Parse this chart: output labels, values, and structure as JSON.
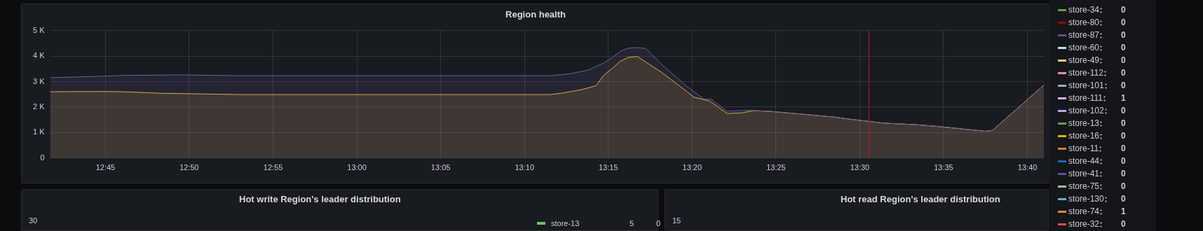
{
  "chart_data": [
    {
      "type": "area",
      "title": "Region health",
      "xlim": [
        12.695,
        13.683
      ],
      "ylim": [
        0,
        5000
      ],
      "xticks": [
        {
          "value": 12.75,
          "label": "12:45"
        },
        {
          "value": 12.8333,
          "label": "12:50"
        },
        {
          "value": 12.9167,
          "label": "12:55"
        },
        {
          "value": 13.0,
          "label": "13:00"
        },
        {
          "value": 13.0833,
          "label": "13:05"
        },
        {
          "value": 13.1667,
          "label": "13:10"
        },
        {
          "value": 13.25,
          "label": "13:15"
        },
        {
          "value": 13.3333,
          "label": "13:20"
        },
        {
          "value": 13.4167,
          "label": "13:25"
        },
        {
          "value": 13.5,
          "label": "13:30"
        },
        {
          "value": 13.5833,
          "label": "13:35"
        },
        {
          "value": 13.6667,
          "label": "13:40"
        }
      ],
      "yticks": [
        {
          "value": 0,
          "label": "0"
        },
        {
          "value": 1000,
          "label": "1 K"
        },
        {
          "value": 2000,
          "label": "2 K"
        },
        {
          "value": 3000,
          "label": "3 K"
        },
        {
          "value": 4000,
          "label": "4 K"
        },
        {
          "value": 5000,
          "label": "5 K"
        }
      ],
      "grid": true,
      "marker": "none",
      "line_style": "solid",
      "ref_lines": [
        {
          "axis": "x",
          "value": 13.509,
          "color": "#c4162a"
        }
      ],
      "series": [
        {
          "color": "#705da0",
          "x": [
            12.695,
            12.748,
            12.767,
            12.825,
            12.883,
            13.192,
            13.211,
            13.23,
            13.245,
            13.254,
            13.262,
            13.27,
            13.279,
            13.287,
            13.303,
            13.312,
            13.328,
            13.345,
            13.352,
            13.368,
            13.389,
            13.411,
            13.443,
            13.474,
            13.491,
            13.524,
            13.555,
            13.575,
            13.605,
            13.625,
            13.632,
            13.683
          ],
          "values": [
            3150,
            3210,
            3240,
            3260,
            3230,
            3230,
            3300,
            3450,
            3720,
            3940,
            4190,
            4310,
            4330,
            4300,
            3670,
            3360,
            2810,
            2310,
            2310,
            1840,
            1870,
            1830,
            1720,
            1610,
            1520,
            1370,
            1310,
            1250,
            1130,
            1050,
            1090,
            2860
          ]
        },
        {
          "color": "#eab839",
          "x": [
            12.695,
            12.748,
            12.767,
            12.806,
            12.883,
            13.192,
            13.203,
            13.223,
            13.238,
            13.245,
            13.254,
            13.262,
            13.27,
            13.279,
            13.303,
            13.312,
            13.328,
            13.335,
            13.351,
            13.368,
            13.382,
            13.395,
            13.411,
            13.443,
            13.474,
            13.491,
            13.524,
            13.555,
            13.575,
            13.605,
            13.625,
            13.632,
            13.683
          ],
          "values": [
            2600,
            2610,
            2600,
            2540,
            2490,
            2490,
            2540,
            2680,
            2840,
            3230,
            3520,
            3800,
            3950,
            3980,
            3360,
            3090,
            2610,
            2390,
            2230,
            1750,
            1770,
            1860,
            1830,
            1720,
            1610,
            1520,
            1370,
            1310,
            1250,
            1130,
            1050,
            1090,
            2860
          ]
        }
      ]
    },
    {
      "type": "other",
      "categories": [
        "store-34",
        "store-80",
        "store-87",
        "store-60",
        "store-49",
        "store-112",
        "store-101",
        "store-111",
        "store-102",
        "store-13",
        "store-16",
        "store-11",
        "store-44",
        "store-41",
        "store-75",
        "store-130",
        "store-74",
        "store-32"
      ],
      "data_labels": true,
      "values": [
        0,
        0,
        0,
        0,
        0,
        0,
        0,
        1,
        0,
        0,
        0,
        0,
        0,
        0,
        0,
        0,
        1,
        0
      ]
    },
    {
      "type": "other",
      "title": "Hot write Region's leader distribution",
      "categories": [
        "store-13"
      ],
      "annotations": [
        "30",
        "5",
        "0"
      ]
    },
    {
      "type": "other",
      "title": "Hot read Region's leader distribution",
      "annotations": [
        "15"
      ]
    }
  ]
}
